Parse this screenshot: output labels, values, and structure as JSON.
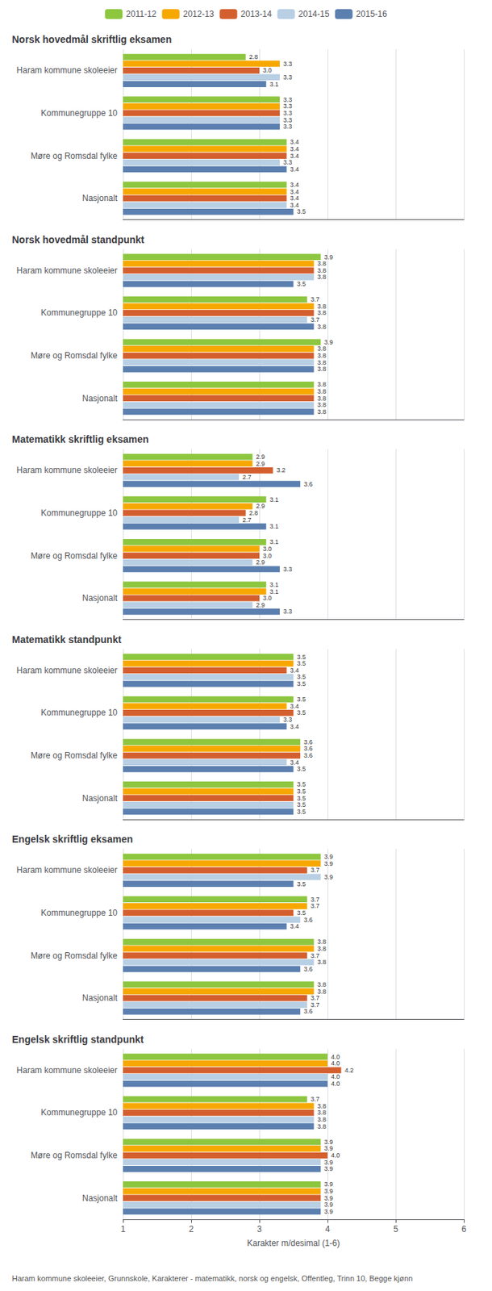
{
  "chart_data": [
    {
      "type": "bar",
      "orientation": "horizontal",
      "title": "Norsk hovedmål skriftlig eksamen",
      "categories": [
        "Haram kommune skoleeier",
        "Kommunegruppe 10",
        "Møre og Romsdal fylke",
        "Nasjonalt"
      ],
      "series": [
        {
          "name": "2011-12",
          "color": "#8dc63f",
          "values": [
            2.8,
            3.3,
            3.4,
            3.4
          ],
          "value_labels": [
            "2.8",
            "3.3",
            "3.4",
            "3.4"
          ]
        },
        {
          "name": "2012-13",
          "color": "#f7a800",
          "values": [
            3.3,
            3.3,
            3.4,
            3.4
          ],
          "value_labels": [
            "3.3",
            "3.3",
            "3.4",
            "3.4"
          ]
        },
        {
          "name": "2013-14",
          "color": "#d45f2e",
          "values": [
            3.0,
            3.3,
            3.4,
            3.4
          ],
          "value_labels": [
            "3.0",
            "3.3",
            "3.4",
            "3.4"
          ]
        },
        {
          "name": "2014-15",
          "color": "#b8cfe4",
          "values": [
            3.3,
            3.3,
            3.3,
            3.4
          ],
          "value_labels": [
            "3.3",
            "3.3",
            "3.3",
            "3.4"
          ]
        },
        {
          "name": "2015-16",
          "color": "#5b7faf",
          "values": [
            3.1,
            3.3,
            3.4,
            3.5
          ],
          "value_labels": [
            "3.1",
            "3.3",
            "3.4",
            "3.5"
          ]
        }
      ],
      "xlim": [
        1,
        6
      ],
      "xticks": [
        1,
        2,
        3,
        4,
        5,
        6
      ],
      "grid": true,
      "data_labels": true,
      "tick_labels": "y",
      "legend": "top"
    },
    {
      "type": "bar",
      "orientation": "horizontal",
      "title": "Norsk hovedmål standpunkt",
      "categories": [
        "Haram kommune skoleeier",
        "Kommunegruppe 10",
        "Møre og Romsdal fylke",
        "Nasjonalt"
      ],
      "series": [
        {
          "name": "2011-12",
          "color": "#8dc63f",
          "values": [
            3.9,
            3.7,
            3.9,
            3.8
          ],
          "value_labels": [
            "3.9",
            "3.7",
            "3.9",
            "3.8"
          ]
        },
        {
          "name": "2012-13",
          "color": "#f7a800",
          "values": [
            3.8,
            3.8,
            3.8,
            3.8
          ],
          "value_labels": [
            "3.8",
            "3.8",
            "3.8",
            "3.8"
          ]
        },
        {
          "name": "2013-14",
          "color": "#d45f2e",
          "values": [
            3.8,
            3.8,
            3.8,
            3.8
          ],
          "value_labels": [
            "3.8",
            "3.8",
            "3.8",
            "3.8"
          ]
        },
        {
          "name": "2014-15",
          "color": "#b8cfe4",
          "values": [
            3.8,
            3.7,
            3.8,
            3.8
          ],
          "value_labels": [
            "3.8",
            "3.7",
            "3.8",
            "3.8"
          ]
        },
        {
          "name": "2015-16",
          "color": "#5b7faf",
          "values": [
            3.5,
            3.8,
            3.8,
            3.8
          ],
          "value_labels": [
            "3.5",
            "3.8",
            "3.8",
            "3.8"
          ]
        }
      ],
      "xlim": [
        1,
        6
      ],
      "xticks": [
        1,
        2,
        3,
        4,
        5,
        6
      ],
      "grid": true,
      "data_labels": true,
      "tick_labels": "y"
    },
    {
      "type": "bar",
      "orientation": "horizontal",
      "title": "Matematikk skriftlig eksamen",
      "categories": [
        "Haram kommune skoleeier",
        "Kommunegruppe 10",
        "Møre og Romsdal fylke",
        "Nasjonalt"
      ],
      "series": [
        {
          "name": "2011-12",
          "color": "#8dc63f",
          "values": [
            2.9,
            3.1,
            3.1,
            3.1
          ],
          "value_labels": [
            "2.9",
            "3.1",
            "3.1",
            "3.1"
          ]
        },
        {
          "name": "2012-13",
          "color": "#f7a800",
          "values": [
            2.9,
            2.9,
            3.0,
            3.1
          ],
          "value_labels": [
            "2.9",
            "2.9",
            "3.0",
            "3.1"
          ]
        },
        {
          "name": "2013-14",
          "color": "#d45f2e",
          "values": [
            3.2,
            2.8,
            3.0,
            3.0
          ],
          "value_labels": [
            "3.2",
            "2.8",
            "3.0",
            "3.0"
          ]
        },
        {
          "name": "2014-15",
          "color": "#b8cfe4",
          "values": [
            2.7,
            2.7,
            2.9,
            2.9
          ],
          "value_labels": [
            "2.7",
            "2.7",
            "2.9",
            "2.9"
          ]
        },
        {
          "name": "2015-16",
          "color": "#5b7faf",
          "values": [
            3.6,
            3.1,
            3.3,
            3.3
          ],
          "value_labels": [
            "3.6",
            "3.1",
            "3.3",
            "3.3"
          ]
        }
      ],
      "xlim": [
        1,
        6
      ],
      "xticks": [
        1,
        2,
        3,
        4,
        5,
        6
      ],
      "grid": true,
      "data_labels": true,
      "tick_labels": "y"
    },
    {
      "type": "bar",
      "orientation": "horizontal",
      "title": "Matematikk standpunkt",
      "categories": [
        "Haram kommune skoleeier",
        "Kommunegruppe 10",
        "Møre og Romsdal fylke",
        "Nasjonalt"
      ],
      "series": [
        {
          "name": "2011-12",
          "color": "#8dc63f",
          "values": [
            3.5,
            3.5,
            3.6,
            3.5
          ],
          "value_labels": [
            "3.5",
            "3.5",
            "3.6",
            "3.5"
          ]
        },
        {
          "name": "2012-13",
          "color": "#f7a800",
          "values": [
            3.5,
            3.4,
            3.6,
            3.5
          ],
          "value_labels": [
            "3.5",
            "3.4",
            "3.6",
            "3.5"
          ]
        },
        {
          "name": "2013-14",
          "color": "#d45f2e",
          "values": [
            3.4,
            3.5,
            3.6,
            3.5
          ],
          "value_labels": [
            "3.4",
            "3.5",
            "3.6",
            "3.5"
          ]
        },
        {
          "name": "2014-15",
          "color": "#b8cfe4",
          "values": [
            3.5,
            3.3,
            3.4,
            3.5
          ],
          "value_labels": [
            "3.5",
            "3.3",
            "3.4",
            "3.5"
          ]
        },
        {
          "name": "2015-16",
          "color": "#5b7faf",
          "values": [
            3.5,
            3.4,
            3.5,
            3.5
          ],
          "value_labels": [
            "3.5",
            "3.4",
            "3.5",
            "3.5"
          ]
        }
      ],
      "xlim": [
        1,
        6
      ],
      "xticks": [
        1,
        2,
        3,
        4,
        5,
        6
      ],
      "grid": true,
      "data_labels": true,
      "tick_labels": "y"
    },
    {
      "type": "bar",
      "orientation": "horizontal",
      "title": "Engelsk skriftlig eksamen",
      "categories": [
        "Haram kommune skoleeier",
        "Kommunegruppe 10",
        "Møre og Romsdal fylke",
        "Nasjonalt"
      ],
      "series": [
        {
          "name": "2011-12",
          "color": "#8dc63f",
          "values": [
            3.9,
            3.7,
            3.8,
            3.8
          ],
          "value_labels": [
            "3.9",
            "3.7",
            "3.8",
            "3.8"
          ]
        },
        {
          "name": "2012-13",
          "color": "#f7a800",
          "values": [
            3.9,
            3.7,
            3.8,
            3.8
          ],
          "value_labels": [
            "3.9",
            "3.7",
            "3.8",
            "3.8"
          ]
        },
        {
          "name": "2013-14",
          "color": "#d45f2e",
          "values": [
            3.7,
            3.5,
            3.7,
            3.7
          ],
          "value_labels": [
            "3.7",
            "3.5",
            "3.7",
            "3.7"
          ]
        },
        {
          "name": "2014-15",
          "color": "#b8cfe4",
          "values": [
            3.9,
            3.6,
            3.8,
            3.7
          ],
          "value_labels": [
            "3.9",
            "3.6",
            "3.8",
            "3.7"
          ]
        },
        {
          "name": "2015-16",
          "color": "#5b7faf",
          "values": [
            3.5,
            3.4,
            3.6,
            3.6
          ],
          "value_labels": [
            "3.5",
            "3.4",
            "3.6",
            "3.6"
          ]
        }
      ],
      "xlim": [
        1,
        6
      ],
      "xticks": [
        1,
        2,
        3,
        4,
        5,
        6
      ],
      "grid": true,
      "data_labels": true,
      "tick_labels": "y"
    },
    {
      "type": "bar",
      "orientation": "horizontal",
      "title": "Engelsk skriftlig standpunkt",
      "categories": [
        "Haram kommune skoleeier",
        "Kommunegruppe 10",
        "Møre og Romsdal fylke",
        "Nasjonalt"
      ],
      "series": [
        {
          "name": "2011-12",
          "color": "#8dc63f",
          "values": [
            4.0,
            3.7,
            3.9,
            3.9
          ],
          "value_labels": [
            "4.0",
            "3.7",
            "3.9",
            "3.9"
          ]
        },
        {
          "name": "2012-13",
          "color": "#f7a800",
          "values": [
            4.0,
            3.8,
            3.9,
            3.9
          ],
          "value_labels": [
            "4.0",
            "3.8",
            "3.9",
            "3.9"
          ]
        },
        {
          "name": "2013-14",
          "color": "#d45f2e",
          "values": [
            4.2,
            3.8,
            4.0,
            3.9
          ],
          "value_labels": [
            "4.2",
            "3.8",
            "4.0",
            "3.9"
          ]
        },
        {
          "name": "2014-15",
          "color": "#b8cfe4",
          "values": [
            4.0,
            3.8,
            3.9,
            3.9
          ],
          "value_labels": [
            "4.0",
            "3.8",
            "3.9",
            "3.9"
          ]
        },
        {
          "name": "2015-16",
          "color": "#5b7faf",
          "values": [
            4.0,
            3.8,
            3.9,
            3.9
          ],
          "value_labels": [
            "4.0",
            "3.8",
            "3.9",
            "3.9"
          ]
        }
      ],
      "xlim": [
        1,
        6
      ],
      "xticks": [
        1,
        2,
        3,
        4,
        5,
        6
      ],
      "grid": true,
      "data_labels": true,
      "tick_labels": true,
      "xlabel": "Karakter m/desimal (1-6)",
      "annotations": [
        "Haram kommune skoleeier, Grunnskole, Karakterer - matematikk, norsk og engelsk, Offentleg, Trinn 10, Begge kjønn"
      ]
    }
  ]
}
